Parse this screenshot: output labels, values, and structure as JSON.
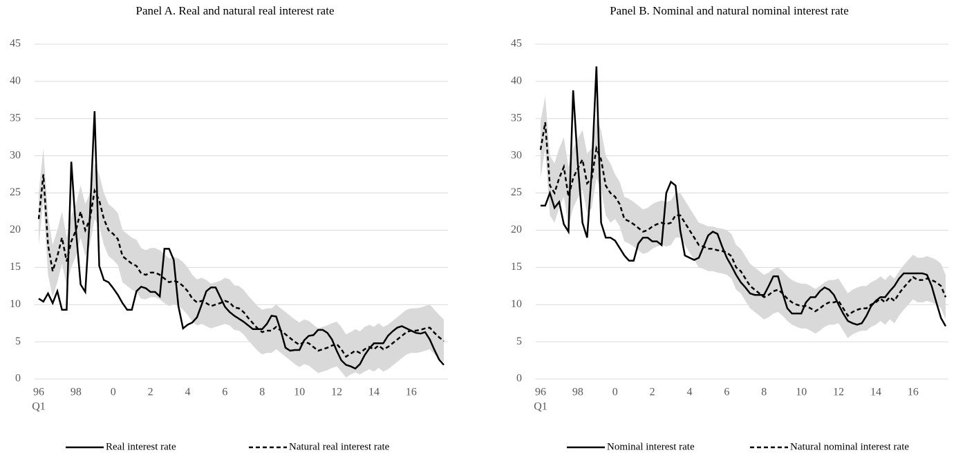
{
  "chart_data": [
    {
      "type": "line",
      "title": "Panel A. Real and natural real interest rate",
      "categories": [
        "96",
        null,
        null,
        null,
        null,
        null,
        null,
        null,
        "98",
        null,
        null,
        null,
        null,
        null,
        null,
        null,
        "0",
        null,
        null,
        null,
        null,
        null,
        null,
        null,
        "2",
        null,
        null,
        null,
        null,
        null,
        null,
        null,
        "4",
        null,
        null,
        null,
        null,
        null,
        null,
        null,
        "6",
        null,
        null,
        null,
        null,
        null,
        null,
        null,
        "8",
        null,
        null,
        null,
        null,
        null,
        null,
        null,
        "10",
        null,
        null,
        null,
        null,
        null,
        null,
        null,
        "12",
        null,
        null,
        null,
        null,
        null,
        null,
        null,
        "14",
        null,
        null,
        null,
        null,
        null,
        null,
        null,
        "16",
        null,
        null,
        null,
        null,
        null,
        null,
        null
      ],
      "x_sublabel": "Q1",
      "ylim": [
        0,
        45
      ],
      "yticks": [
        0,
        5,
        10,
        15,
        20,
        25,
        30,
        35,
        40,
        45
      ],
      "grid": true,
      "series": [
        {
          "name": "Real interest rate",
          "color": "#000000",
          "line_style": "solid",
          "values": [
            10.8,
            10.4,
            11.5,
            10.2,
            11.8,
            9.3,
            9.3,
            29.2,
            20,
            12.7,
            11.7,
            22,
            36,
            15.2,
            13.3,
            13,
            12.2,
            11.3,
            10.2,
            9.3,
            9.3,
            11.8,
            12.4,
            12.2,
            11.7,
            11.7,
            11.1,
            17.5,
            17.5,
            16,
            9.8,
            6.8,
            7.3,
            7.6,
            8.3,
            10,
            11.8,
            12.3,
            12.3,
            11,
            9.7,
            9,
            8.5,
            8.1,
            7.7,
            7.2,
            6.7,
            6.7,
            6.7,
            7.4,
            8.5,
            8.4,
            6.5,
            4.2,
            3.8,
            3.9,
            3.9,
            5.2,
            5.8,
            5.9,
            6.6,
            6.6,
            6.2,
            5.3,
            3.8,
            2.5,
            1.9,
            1.7,
            1.4,
            2,
            3.2,
            4.1,
            4.8,
            4.8,
            4.8,
            5.8,
            6.4,
            6.9,
            7.1,
            6.8,
            6.5,
            6.2,
            6.1,
            6.3,
            5.3,
            3.9,
            2.6,
            1.9
          ]
        },
        {
          "name": "Natural real interest rate",
          "color": "#000000",
          "line_style": "dashed",
          "values": [
            21.5,
            27.5,
            18,
            14.5,
            16.5,
            19,
            15.8,
            18.5,
            20,
            22.5,
            20,
            21.5,
            25.3,
            24,
            21.5,
            20,
            19.5,
            18.8,
            16.5,
            16,
            15.5,
            15.2,
            14.2,
            14,
            14.3,
            14.3,
            14,
            13.5,
            13,
            13.2,
            13,
            12.5,
            11.8,
            10.8,
            10.3,
            10.5,
            10.2,
            9.8,
            10,
            10.2,
            10.5,
            10.3,
            9.6,
            9.5,
            9,
            8.2,
            7.5,
            6.8,
            6.3,
            6.5,
            6.5,
            7,
            6.5,
            6,
            5.5,
            5,
            4.6,
            5,
            4.8,
            4.3,
            3.8,
            4,
            4.2,
            4.5,
            4.7,
            4,
            3,
            3.4,
            3.8,
            3.5,
            4,
            4.3,
            4,
            4.5,
            4,
            4.3,
            4.8,
            5.3,
            5.8,
            6.3,
            6.5,
            6.5,
            6.6,
            6.8,
            6.9,
            6.2,
            5.6,
            5.1
          ]
        }
      ],
      "band": {
        "color": "#d9d9d9",
        "lower": [
          18,
          24,
          14,
          11,
          13,
          15.5,
          12.5,
          15,
          16.5,
          19,
          16.5,
          18,
          21.5,
          20.5,
          18,
          16.5,
          16,
          15.3,
          13,
          12.5,
          12,
          11.7,
          10.8,
          10.7,
          11,
          11,
          10.7,
          10.2,
          9.8,
          10,
          9.8,
          9.3,
          8.6,
          7.7,
          7.2,
          7.4,
          7.1,
          6.8,
          7,
          7.2,
          7.4,
          7.2,
          6.6,
          6.5,
          6,
          5.2,
          4.5,
          3.8,
          3.3,
          3.5,
          3.5,
          4,
          3.5,
          3,
          2.5,
          2,
          1.6,
          2,
          1.8,
          1.3,
          0.8,
          1,
          1.2,
          1.5,
          1.7,
          1,
          0.2,
          0.6,
          0.9,
          0.6,
          1,
          1.3,
          1,
          1.5,
          1,
          1.3,
          1.8,
          2.3,
          2.8,
          3.3,
          3.5,
          3.5,
          3.6,
          3.8,
          4,
          3.3,
          2.8,
          2.3
        ],
        "upper": [
          25,
          31,
          22,
          18,
          20,
          22.5,
          19,
          22,
          23.5,
          26,
          23.5,
          25,
          29,
          27.5,
          25,
          23.5,
          23,
          22.3,
          20,
          19.5,
          19,
          18.7,
          17.6,
          17.3,
          17.6,
          17.6,
          17.3,
          16.8,
          16.2,
          16.4,
          16.2,
          15.7,
          15,
          14,
          13.4,
          13.6,
          13.3,
          12.8,
          13,
          13.2,
          13.6,
          13.4,
          12.6,
          12.5,
          12,
          11.2,
          10.5,
          9.8,
          9.3,
          9.5,
          9.5,
          10,
          9.5,
          9,
          8.5,
          8,
          7.6,
          8,
          7.8,
          7.3,
          6.8,
          7,
          7.2,
          7.5,
          7.7,
          7,
          6,
          6.3,
          6.7,
          6.4,
          7,
          7.3,
          7,
          7.5,
          7,
          7.3,
          7.8,
          8.3,
          8.8,
          9.3,
          9.5,
          9.5,
          9.6,
          9.8,
          10,
          9.3,
          8.6,
          8
        ]
      }
    },
    {
      "type": "line",
      "title": "Panel B. Nominal and natural nominal interest rate",
      "categories": [
        "96",
        null,
        null,
        null,
        null,
        null,
        null,
        null,
        "98",
        null,
        null,
        null,
        null,
        null,
        null,
        null,
        "0",
        null,
        null,
        null,
        null,
        null,
        null,
        null,
        "2",
        null,
        null,
        null,
        null,
        null,
        null,
        null,
        "4",
        null,
        null,
        null,
        null,
        null,
        null,
        null,
        "6",
        null,
        null,
        null,
        null,
        null,
        null,
        null,
        "8",
        null,
        null,
        null,
        null,
        null,
        null,
        null,
        "10",
        null,
        null,
        null,
        null,
        null,
        null,
        null,
        "12",
        null,
        null,
        null,
        null,
        null,
        null,
        null,
        "14",
        null,
        null,
        null,
        null,
        null,
        null,
        null,
        "16",
        null,
        null,
        null,
        null,
        null,
        null,
        null
      ],
      "x_sublabel": "Q1",
      "ylim": [
        0,
        45
      ],
      "yticks": [
        0,
        5,
        10,
        15,
        20,
        25,
        30,
        35,
        40,
        45
      ],
      "grid": true,
      "series": [
        {
          "name": "Nominal interest rate",
          "color": "#000000",
          "line_style": "solid",
          "values": [
            23.3,
            23.3,
            25,
            23,
            23.8,
            20.8,
            19.8,
            38.8,
            29,
            21,
            19,
            28,
            42,
            21,
            19,
            19,
            18.6,
            17.6,
            16.6,
            15.9,
            15.9,
            18.2,
            19,
            19,
            18.5,
            18.5,
            18,
            25,
            26.5,
            26,
            20,
            16.6,
            16.3,
            16,
            16.3,
            17.8,
            19.3,
            19.8,
            19.5,
            17.8,
            16.3,
            15.2,
            14,
            13,
            12.3,
            11.5,
            11.3,
            11.3,
            11.3,
            12.5,
            13.8,
            13.8,
            11.5,
            9.5,
            8.8,
            8.8,
            8.8,
            10.3,
            11,
            11,
            11.8,
            12.3,
            12,
            11.3,
            10,
            8.8,
            7.8,
            7.5,
            7.3,
            7.5,
            8.5,
            9.8,
            10.5,
            11,
            11,
            11.8,
            12.5,
            13.5,
            14.2,
            14.2,
            14.2,
            14.2,
            14.2,
            14,
            12.5,
            10.3,
            8.2,
            7.1
          ]
        },
        {
          "name": "Natural nominal interest rate",
          "color": "#000000",
          "line_style": "dashed",
          "values": [
            30.8,
            34.5,
            26,
            25,
            27,
            28.5,
            24.5,
            27,
            28.3,
            29.5,
            26.3,
            27,
            31,
            29.5,
            26,
            25,
            24.5,
            23.5,
            21.5,
            21.2,
            20.8,
            20.3,
            19.8,
            20,
            20.5,
            20.8,
            21,
            20.8,
            21,
            22,
            22,
            21,
            20,
            19,
            18,
            17.8,
            17.5,
            17.5,
            17.3,
            17.2,
            17,
            16.5,
            15,
            14.5,
            13.5,
            12.5,
            12,
            11.5,
            11,
            11.3,
            11.8,
            12,
            11.5,
            10.8,
            10.3,
            10,
            9.8,
            9.8,
            9.5,
            9.1,
            9.5,
            10,
            10.3,
            10.3,
            10.5,
            9.5,
            8.5,
            9,
            9.3,
            9.5,
            9.5,
            10,
            10.3,
            10.8,
            10.3,
            11,
            10.5,
            11.5,
            12.3,
            13,
            13.7,
            13.3,
            13.3,
            13.5,
            13.3,
            13,
            12.5,
            11
          ]
        }
      ],
      "band": {
        "color": "#d9d9d9",
        "lower": [
          27,
          31,
          22,
          21,
          23,
          24.5,
          20.5,
          23,
          24.3,
          25.5,
          22.3,
          23,
          27,
          25.5,
          22,
          21,
          21.5,
          20.5,
          18.5,
          18.2,
          17.8,
          17.3,
          16.8,
          17,
          17.5,
          17.8,
          18,
          17.8,
          18,
          19,
          19,
          18,
          17,
          16,
          15,
          14.8,
          14.5,
          14.5,
          14.3,
          14.2,
          14,
          13.5,
          12,
          11.5,
          10.5,
          9.5,
          9,
          8.5,
          8,
          8.3,
          8.8,
          9,
          8.5,
          7.8,
          7.3,
          7,
          6.8,
          6.8,
          6.5,
          6.1,
          6.5,
          7,
          7.3,
          7.3,
          7.5,
          6.5,
          5.5,
          6,
          6.3,
          6.5,
          6.5,
          7,
          7.3,
          7.8,
          7.3,
          8,
          7.5,
          8.5,
          9.3,
          10,
          10.7,
          10.3,
          10.3,
          10.5,
          10.3,
          10,
          9.5,
          8
        ],
        "upper": [
          34.6,
          38,
          30,
          29,
          31,
          32.5,
          28.5,
          31,
          32.3,
          33.5,
          30.3,
          31,
          35,
          33.5,
          30,
          29,
          27.5,
          26.5,
          24.5,
          24.2,
          23.8,
          23.3,
          22.8,
          23,
          23.5,
          23.8,
          24,
          23.8,
          24,
          25,
          25,
          24,
          23,
          22,
          21,
          20.8,
          20.5,
          20.5,
          20.3,
          20.2,
          20,
          19.5,
          18,
          17.5,
          16.5,
          15.5,
          15,
          14.5,
          14,
          14.3,
          14.8,
          15,
          14.5,
          13.8,
          13.3,
          13,
          12.8,
          12.8,
          12.5,
          12.1,
          12.5,
          13,
          13.3,
          13.3,
          13.5,
          12.5,
          11.5,
          12,
          12.3,
          12.5,
          12.5,
          13,
          13.3,
          13.8,
          13.3,
          14,
          13.5,
          14.5,
          15.3,
          16,
          16.7,
          16.3,
          16.3,
          16.5,
          16.3,
          16,
          15.5,
          14
        ]
      }
    }
  ]
}
